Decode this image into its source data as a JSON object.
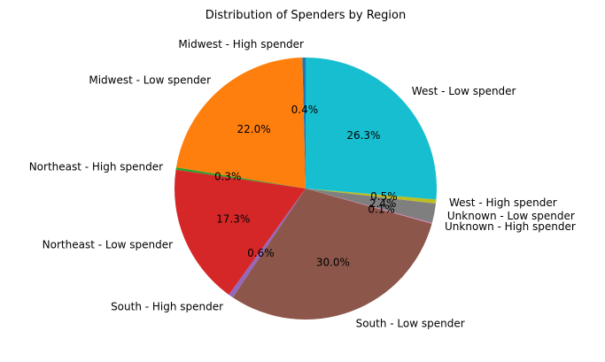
{
  "chart_data": {
    "type": "pie",
    "title": "Distribution of Spenders by Region",
    "start_angle_deg": 90,
    "direction": "counterclockwise",
    "legend": "none",
    "slices": [
      {
        "label": "Midwest - High spender",
        "value": 0.4,
        "pct_label": "0.4%",
        "color": "#1f77b4"
      },
      {
        "label": "Midwest - Low spender",
        "value": 22.0,
        "pct_label": "22.0%",
        "color": "#ff7f0e"
      },
      {
        "label": "Northeast - High spender",
        "value": 0.3,
        "pct_label": "0.3%",
        "color": "#2ca02c"
      },
      {
        "label": "Northeast - Low spender",
        "value": 17.3,
        "pct_label": "17.3%",
        "color": "#d62728"
      },
      {
        "label": "South - High spender",
        "value": 0.6,
        "pct_label": "0.6%",
        "color": "#9467bd"
      },
      {
        "label": "South - Low spender",
        "value": 30.0,
        "pct_label": "30.0%",
        "color": "#8c564b"
      },
      {
        "label": "Unknown - High spender",
        "value": 0.1,
        "pct_label": "0.1%",
        "color": "#e377c2"
      },
      {
        "label": "Unknown - Low spender",
        "value": 2.4,
        "pct_label": "2.4%",
        "color": "#7f7f7f"
      },
      {
        "label": "West - High spender",
        "value": 0.5,
        "pct_label": "0.5%",
        "color": "#bcbd22"
      },
      {
        "label": "West - Low spender",
        "value": 26.3,
        "pct_label": "26.3%",
        "color": "#17becf"
      }
    ]
  }
}
